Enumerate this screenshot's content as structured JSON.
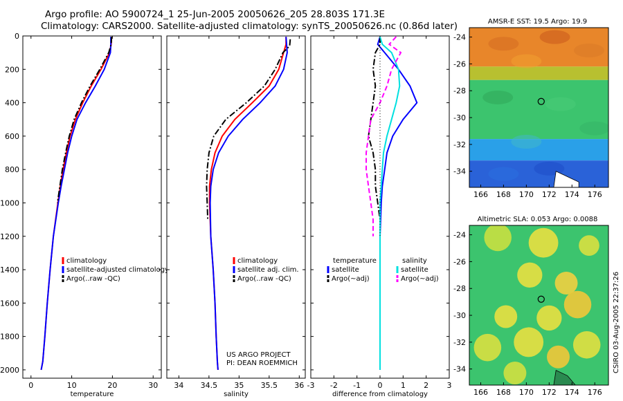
{
  "header": {
    "line1": "Argo profile: AO 5900724_1 25-Jun-2005 20050626_205 28.803S 171.3E",
    "line2": "Climatology: CARS2000. Satellite-adjusted climatology: synTS_20050626.nc (0.86d later)"
  },
  "footer": {
    "project_line1": "US ARGO PROJECT",
    "project_line2": "PI: DEAN ROEMMICH",
    "side_label": "CSIRO 03-Aug-2005 22:37:26"
  },
  "colors": {
    "climatology": "#ff0000",
    "satellite": "#0000ff",
    "argo": "#000000",
    "salinity_satellite": "#00e0e0",
    "salinity_argo": "#ff00ff"
  },
  "chart_data": [
    {
      "type": "line",
      "id": "temperature",
      "xlabel": "temperature",
      "ylabel": "",
      "xlim": [
        -2,
        32
      ],
      "ylim": [
        2050,
        0
      ],
      "xticks": [
        0,
        10,
        20,
        30
      ],
      "yticks": [
        0,
        200,
        400,
        600,
        800,
        1000,
        1200,
        1400,
        1600,
        1800,
        2000
      ],
      "legend": [
        "climatology",
        "satellite-adjusted climatology",
        "Argo(..raw -QC)"
      ],
      "series": [
        {
          "name": "climatology",
          "color": "#ff0000",
          "style": "solid",
          "x": [
            19.8,
            19.7,
            19.3,
            17.2,
            14.8,
            12.7,
            10.9,
            9.6,
            8.7,
            7.9,
            7.2,
            6.6,
            5.5,
            4.7,
            4.0,
            3.4,
            2.9,
            2.5
          ],
          "y": [
            5,
            50,
            100,
            200,
            300,
            400,
            500,
            600,
            700,
            800,
            900,
            1000,
            1200,
            1400,
            1600,
            1800,
            1950,
            2000
          ]
        },
        {
          "name": "satellite-adjusted climatology",
          "color": "#0000ff",
          "style": "solid",
          "x": [
            19.6,
            19.6,
            19.5,
            18.0,
            15.8,
            13.4,
            11.3,
            10.0,
            9.0,
            8.2,
            7.4,
            6.7,
            5.5,
            4.7,
            4.0,
            3.4,
            2.9,
            2.5
          ],
          "y": [
            5,
            50,
            100,
            200,
            300,
            400,
            500,
            600,
            700,
            800,
            900,
            1000,
            1200,
            1400,
            1600,
            1800,
            1950,
            2000
          ]
        },
        {
          "name": "Argo(..raw -QC)",
          "color": "#000000",
          "style": "dashdot",
          "x": [
            19.8,
            19.7,
            19.1,
            16.9,
            14.5,
            12.4,
            10.6,
            9.4,
            8.5,
            7.7,
            7.1,
            6.5
          ],
          "y": [
            5,
            50,
            100,
            200,
            300,
            400,
            500,
            600,
            700,
            800,
            900,
            1000
          ]
        }
      ]
    },
    {
      "type": "line",
      "id": "salinity",
      "xlabel": "salinity",
      "ylabel": "",
      "xlim": [
        33.8,
        36.1
      ],
      "ylim": [
        2050,
        0
      ],
      "xticks": [
        34,
        34.5,
        35,
        35.5,
        36
      ],
      "legend": [
        "climatology",
        "satellite adj. clim.",
        "Argo(..raw -QC)"
      ],
      "series": [
        {
          "name": "climatology",
          "color": "#ff0000",
          "style": "solid",
          "x": [
            35.78,
            35.78,
            35.74,
            35.66,
            35.5,
            35.22,
            34.93,
            34.72,
            34.6,
            34.54,
            34.51,
            34.51,
            34.53,
            34.57,
            34.6,
            34.62,
            34.64,
            34.65
          ],
          "y": [
            5,
            50,
            100,
            200,
            300,
            400,
            500,
            600,
            700,
            800,
            900,
            1000,
            1200,
            1400,
            1600,
            1800,
            1950,
            2000
          ]
        },
        {
          "name": "satellite adj. clim.",
          "color": "#0000ff",
          "style": "solid",
          "x": [
            35.78,
            35.79,
            35.8,
            35.74,
            35.6,
            35.35,
            35.06,
            34.82,
            34.66,
            34.57,
            34.53,
            34.52,
            34.53,
            34.57,
            34.6,
            34.62,
            34.64,
            34.65
          ],
          "y": [
            5,
            50,
            100,
            200,
            300,
            400,
            500,
            600,
            700,
            800,
            900,
            1000,
            1200,
            1400,
            1600,
            1800,
            1950,
            2000
          ]
        },
        {
          "name": "Argo(..raw -QC)",
          "color": "#000000",
          "style": "dashdot",
          "x": [
            35.85,
            35.84,
            35.73,
            35.6,
            35.42,
            35.12,
            34.78,
            34.58,
            34.5,
            34.47,
            34.46,
            34.47,
            34.48
          ],
          "y": [
            20,
            60,
            100,
            200,
            300,
            400,
            500,
            600,
            700,
            800,
            900,
            1000,
            1100
          ]
        }
      ]
    },
    {
      "type": "line",
      "id": "difference",
      "xlabel": "difference from climatology",
      "ylabel": "",
      "xlim": [
        -3,
        3
      ],
      "ylim": [
        2050,
        0
      ],
      "xticks": [
        -3,
        -2,
        -1,
        0,
        1,
        2,
        3
      ],
      "legend_temperature": {
        "title": "temperature",
        "entries": [
          "satellite",
          "Argo(~adj)"
        ]
      },
      "legend_salinity": {
        "title": "salinity",
        "entries": [
          "satellite",
          "Argo(~adj)"
        ]
      },
      "series": [
        {
          "name": "temperature satellite",
          "color": "#0000ff",
          "style": "solid",
          "x": [
            0.0,
            -0.1,
            0.2,
            0.8,
            1.3,
            1.6,
            1.0,
            0.55,
            0.3,
            0.2,
            0.1,
            0.05,
            0.0,
            0.0,
            0.0
          ],
          "y": [
            5,
            50,
            100,
            200,
            300,
            400,
            500,
            600,
            700,
            800,
            900,
            1000,
            1200,
            1400,
            2000
          ]
        },
        {
          "name": "temperature Argo(~adj)",
          "color": "#000000",
          "style": "dashdot",
          "x": [
            0.0,
            0.0,
            -0.2,
            -0.3,
            -0.2,
            -0.3,
            -0.4,
            -0.5,
            -0.3,
            -0.2,
            -0.2,
            -0.1,
            0.0,
            0.0
          ],
          "y": [
            5,
            50,
            100,
            200,
            300,
            400,
            500,
            600,
            700,
            800,
            900,
            1000,
            1100,
            1200
          ]
        },
        {
          "name": "salinity satellite",
          "color": "#00e0e0",
          "style": "solid",
          "x": [
            0.0,
            0.1,
            0.5,
            0.8,
            0.85,
            0.7,
            0.5,
            0.3,
            0.15,
            0.1,
            0.05,
            0.0,
            0.0,
            0.0
          ],
          "y": [
            5,
            50,
            100,
            200,
            300,
            400,
            500,
            600,
            700,
            800,
            900,
            1000,
            1200,
            2000
          ]
        },
        {
          "name": "salinity Argo(~adj)",
          "color": "#ff00ff",
          "style": "dashed",
          "x": [
            0.7,
            0.4,
            0.9,
            0.5,
            0.3,
            0.0,
            -0.4,
            -0.5,
            -0.6,
            -0.6,
            -0.5,
            -0.4,
            -0.3,
            -0.3
          ],
          "y": [
            5,
            50,
            100,
            200,
            300,
            400,
            500,
            600,
            700,
            800,
            900,
            1000,
            1100,
            1200
          ]
        },
        {
          "name": "zero",
          "color": "#000000",
          "style": "dotted",
          "x": [
            0,
            0
          ],
          "y": [
            0,
            1200
          ]
        }
      ]
    },
    {
      "type": "heatmap",
      "id": "sst_map",
      "title": "AMSR-E SST: 19.5 Argo: 19.9",
      "xticks": [
        166,
        168,
        170,
        172,
        174,
        176
      ],
      "yticks": [
        -24,
        -26,
        -28,
        -30,
        -32,
        -34
      ],
      "xlim": [
        165,
        177.2
      ],
      "ylim": [
        -35.2,
        -23.3
      ],
      "marker": {
        "lon": 171.3,
        "lat": -28.8
      },
      "rows_top_to_bottom": [
        "bands: orange (~24 to ~26.5S), green (~27 to ~31.5S), light blue to deep blue (~32 to ~35S)"
      ],
      "bands": [
        {
          "lat_from": -23.3,
          "lat_to": -26.2,
          "color": "#e8862a"
        },
        {
          "lat_from": -26.2,
          "lat_to": -27.2,
          "color": "#b8c030"
        },
        {
          "lat_from": -27.2,
          "lat_to": -31.6,
          "color": "#3cc46e"
        },
        {
          "lat_from": -31.6,
          "lat_to": -33.2,
          "color": "#2aa0e8"
        },
        {
          "lat_from": -33.2,
          "lat_to": -35.2,
          "color": "#2a62d8"
        }
      ]
    },
    {
      "type": "heatmap",
      "id": "sla_map",
      "title": "Altimetric SLA: 0.053 Argo: 0.0088",
      "xticks": [
        166,
        168,
        170,
        172,
        174,
        176
      ],
      "yticks": [
        -24,
        -26,
        -28,
        -30,
        -32,
        -34
      ],
      "xlim": [
        165,
        177.2
      ],
      "ylim": [
        -35.2,
        -23.3
      ],
      "marker": {
        "lon": 171.3,
        "lat": -28.8
      },
      "blobs": [
        {
          "lon": 167.5,
          "lat": -24.2,
          "r": 1.2,
          "color": "#c8e040"
        },
        {
          "lon": 171.5,
          "lat": -24.6,
          "r": 1.3,
          "color": "#e8e040"
        },
        {
          "lon": 175.5,
          "lat": -24.8,
          "r": 0.9,
          "color": "#d8e040"
        },
        {
          "lon": 170.3,
          "lat": -27.0,
          "r": 1.1,
          "color": "#e8e040"
        },
        {
          "lon": 173.5,
          "lat": -27.6,
          "r": 1.0,
          "color": "#f0d040"
        },
        {
          "lon": 174.5,
          "lat": -29.2,
          "r": 1.2,
          "color": "#f0c838"
        },
        {
          "lon": 168.2,
          "lat": -30.1,
          "r": 1.0,
          "color": "#e8e040"
        },
        {
          "lon": 172.0,
          "lat": -30.2,
          "r": 1.1,
          "color": "#e8e040"
        },
        {
          "lon": 166.6,
          "lat": -32.4,
          "r": 1.2,
          "color": "#d8e040"
        },
        {
          "lon": 170.2,
          "lat": -32.0,
          "r": 1.3,
          "color": "#e8e040"
        },
        {
          "lon": 172.8,
          "lat": -33.1,
          "r": 1.0,
          "color": "#f0c838"
        },
        {
          "lon": 175.3,
          "lat": -32.2,
          "r": 1.2,
          "color": "#e0e040"
        },
        {
          "lon": 169.0,
          "lat": -34.3,
          "r": 1.0,
          "color": "#d0e040"
        }
      ],
      "background": "#3cc46e"
    }
  ]
}
